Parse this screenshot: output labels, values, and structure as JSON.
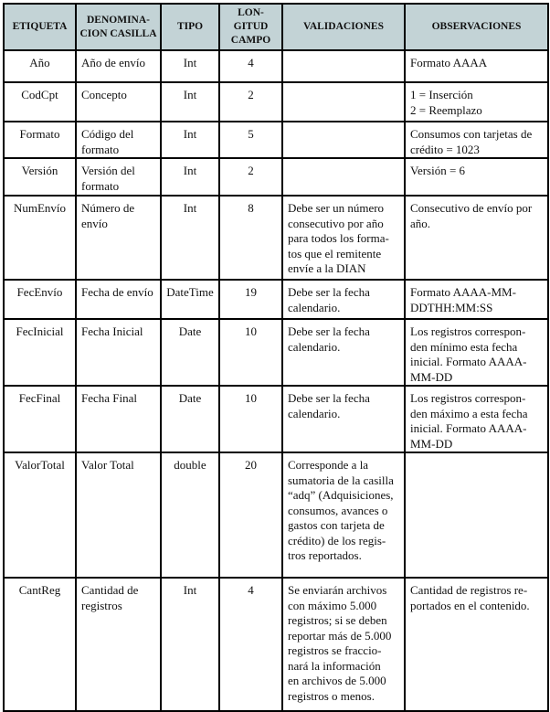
{
  "header": [
    "ETIQUETA",
    "DENOMINA-\nCION CASILLA",
    "TIPO",
    "LON-\nGITUD\nCAMPO",
    "VALIDACIONES",
    "OBSERVACIONES"
  ],
  "rows": [
    [
      "Año",
      "Año de envío",
      "Int",
      "4",
      "",
      "Formato AAAA"
    ],
    [
      "CodCpt",
      "Concepto",
      "Int",
      "2",
      "",
      "1 = Inserción\n2 = Reemplazo"
    ],
    [
      "Formato",
      "Código del\nformato",
      "Int",
      "5",
      "",
      "Consumos con tarjetas de\ncrédito = 1023"
    ],
    [
      "Versión",
      "Versión del\nformato",
      "Int",
      "2",
      "",
      "Versión = 6"
    ],
    [
      "NumEnvío",
      "Número de\nenvío",
      "Int",
      "8",
      "Debe ser un número\nconsecutivo por año\npara todos los forma-\ntos que el remitente\nenvíe a la DIAN",
      "Consecutivo de envío por\naño."
    ],
    [
      "FecEnvío",
      "Fecha de envío",
      "DateTime",
      "19",
      "Debe ser la fecha\ncalendario.",
      "Formato AAAA-MM-\nDDTHH:MM:SS"
    ],
    [
      "FecInicial",
      "Fecha Inicial",
      "Date",
      "10",
      "Debe ser la fecha\ncalendario.",
      "Los registros correspon-\nden mínimo esta fecha\ninicial. Formato AAAA-\nMM-DD"
    ],
    [
      "FecFinal",
      "Fecha Final",
      "Date",
      "10",
      "Debe ser la fecha\ncalendario.",
      "Los registros correspon-\nden máximo a esta fecha\ninicial. Formato AAAA-\nMM-DD"
    ],
    [
      "ValorTotal",
      "Valor Total",
      "double",
      "20",
      "Corresponde a la\nsumatoria de la casilla\n“adq” (Adquisiciones,\nconsumos, avances o\ngastos con tarjeta de\ncrédito) de los regis-\ntros reportados.",
      ""
    ],
    [
      "CantReg",
      "Cantidad de\nregistros",
      "Int",
      "4",
      "Se enviarán archivos\ncon máximo 5.000\nregistros; si se deben\nreportar más de 5.000\nregistros se fraccio-\nnará la información\nen archivos de 5.000\nregistros o menos.",
      "Cantidad de registros re-\nportados en el contenido."
    ]
  ],
  "colors": {
    "header_bg": "#c3d3d6",
    "border": "#000000"
  }
}
